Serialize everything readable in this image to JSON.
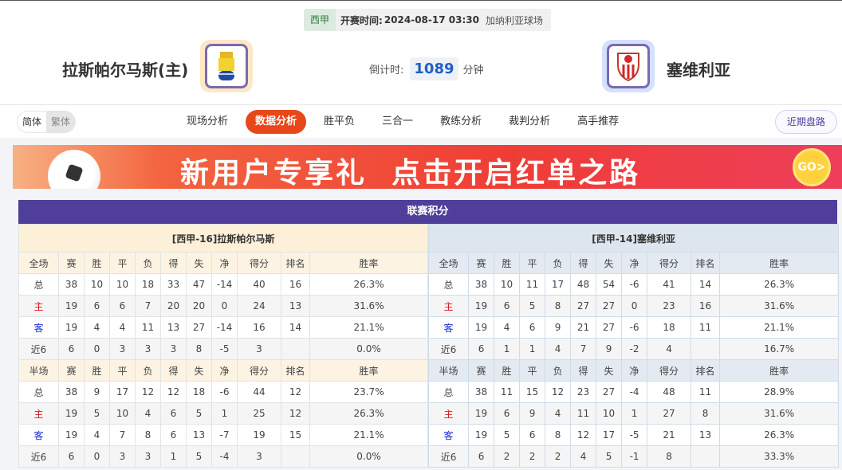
{
  "match": {
    "league": "西甲",
    "kickoff_label": "开赛时间:",
    "kickoff": "2024-08-17 03:30",
    "venue": "加纳利亚球场"
  },
  "home": {
    "name": "拉斯帕尔马斯(主)"
  },
  "away": {
    "name": "塞维利亚"
  },
  "countdown": {
    "label": "倒计时:",
    "value": "1089",
    "unit": "分钟"
  },
  "lang": {
    "simplified": "简体",
    "traditional": "繁体"
  },
  "tabs": [
    {
      "label": "现场分析"
    },
    {
      "label": "数据分析",
      "active": true
    },
    {
      "label": "胜平负"
    },
    {
      "label": "三合一"
    },
    {
      "label": "教练分析"
    },
    {
      "label": "裁判分析"
    },
    {
      "label": "高手推荐"
    }
  ],
  "recent_button": "近期盘路",
  "banner": {
    "text": "新用户专享礼  点击开启红单之路",
    "go": "GO>"
  },
  "standings": {
    "title": "联赛积分",
    "columns": [
      "赛",
      "胜",
      "平",
      "负",
      "得",
      "失",
      "净",
      "得分",
      "排名",
      "胜率"
    ],
    "full_label": "全场",
    "half_label": "半场",
    "teams": [
      {
        "header": "[西甲-16]拉斯帕尔马斯",
        "full": [
          [
            "总",
            "38",
            "10",
            "10",
            "18",
            "33",
            "47",
            "-14",
            "40",
            "16",
            "26.3%"
          ],
          [
            "主",
            "19",
            "6",
            "6",
            "7",
            "20",
            "20",
            "0",
            "24",
            "13",
            "31.6%"
          ],
          [
            "客",
            "19",
            "4",
            "4",
            "11",
            "13",
            "27",
            "-14",
            "16",
            "14",
            "21.1%"
          ],
          [
            "近6",
            "6",
            "0",
            "3",
            "3",
            "3",
            "8",
            "-5",
            "3",
            "",
            "0.0%"
          ]
        ],
        "half": [
          [
            "总",
            "38",
            "9",
            "17",
            "12",
            "12",
            "18",
            "-6",
            "44",
            "12",
            "23.7%"
          ],
          [
            "主",
            "19",
            "5",
            "10",
            "4",
            "6",
            "5",
            "1",
            "25",
            "12",
            "26.3%"
          ],
          [
            "客",
            "19",
            "4",
            "7",
            "8",
            "6",
            "13",
            "-7",
            "19",
            "15",
            "21.1%"
          ],
          [
            "近6",
            "6",
            "0",
            "3",
            "3",
            "1",
            "5",
            "-4",
            "3",
            "",
            "0.0%"
          ]
        ]
      },
      {
        "header": "[西甲-14]塞维利亚",
        "full": [
          [
            "总",
            "38",
            "10",
            "11",
            "17",
            "48",
            "54",
            "-6",
            "41",
            "14",
            "26.3%"
          ],
          [
            "主",
            "19",
            "6",
            "5",
            "8",
            "27",
            "27",
            "0",
            "23",
            "16",
            "31.6%"
          ],
          [
            "客",
            "19",
            "4",
            "6",
            "9",
            "21",
            "27",
            "-6",
            "18",
            "11",
            "21.1%"
          ],
          [
            "近6",
            "6",
            "1",
            "1",
            "4",
            "7",
            "9",
            "-2",
            "4",
            "",
            "16.7%"
          ]
        ],
        "half": [
          [
            "总",
            "38",
            "11",
            "15",
            "12",
            "23",
            "27",
            "-4",
            "48",
            "11",
            "28.9%"
          ],
          [
            "主",
            "19",
            "6",
            "9",
            "4",
            "11",
            "10",
            "1",
            "27",
            "8",
            "31.6%"
          ],
          [
            "客",
            "19",
            "5",
            "6",
            "8",
            "12",
            "17",
            "-5",
            "21",
            "13",
            "26.3%"
          ],
          [
            "近6",
            "6",
            "2",
            "2",
            "2",
            "4",
            "5",
            "-1",
            "8",
            "",
            "33.3%"
          ]
        ]
      }
    ]
  },
  "colors": {
    "accent": "#e8471a",
    "header": "#4f3f9a",
    "home": "#e0161a",
    "away": "#1a2fd8"
  }
}
